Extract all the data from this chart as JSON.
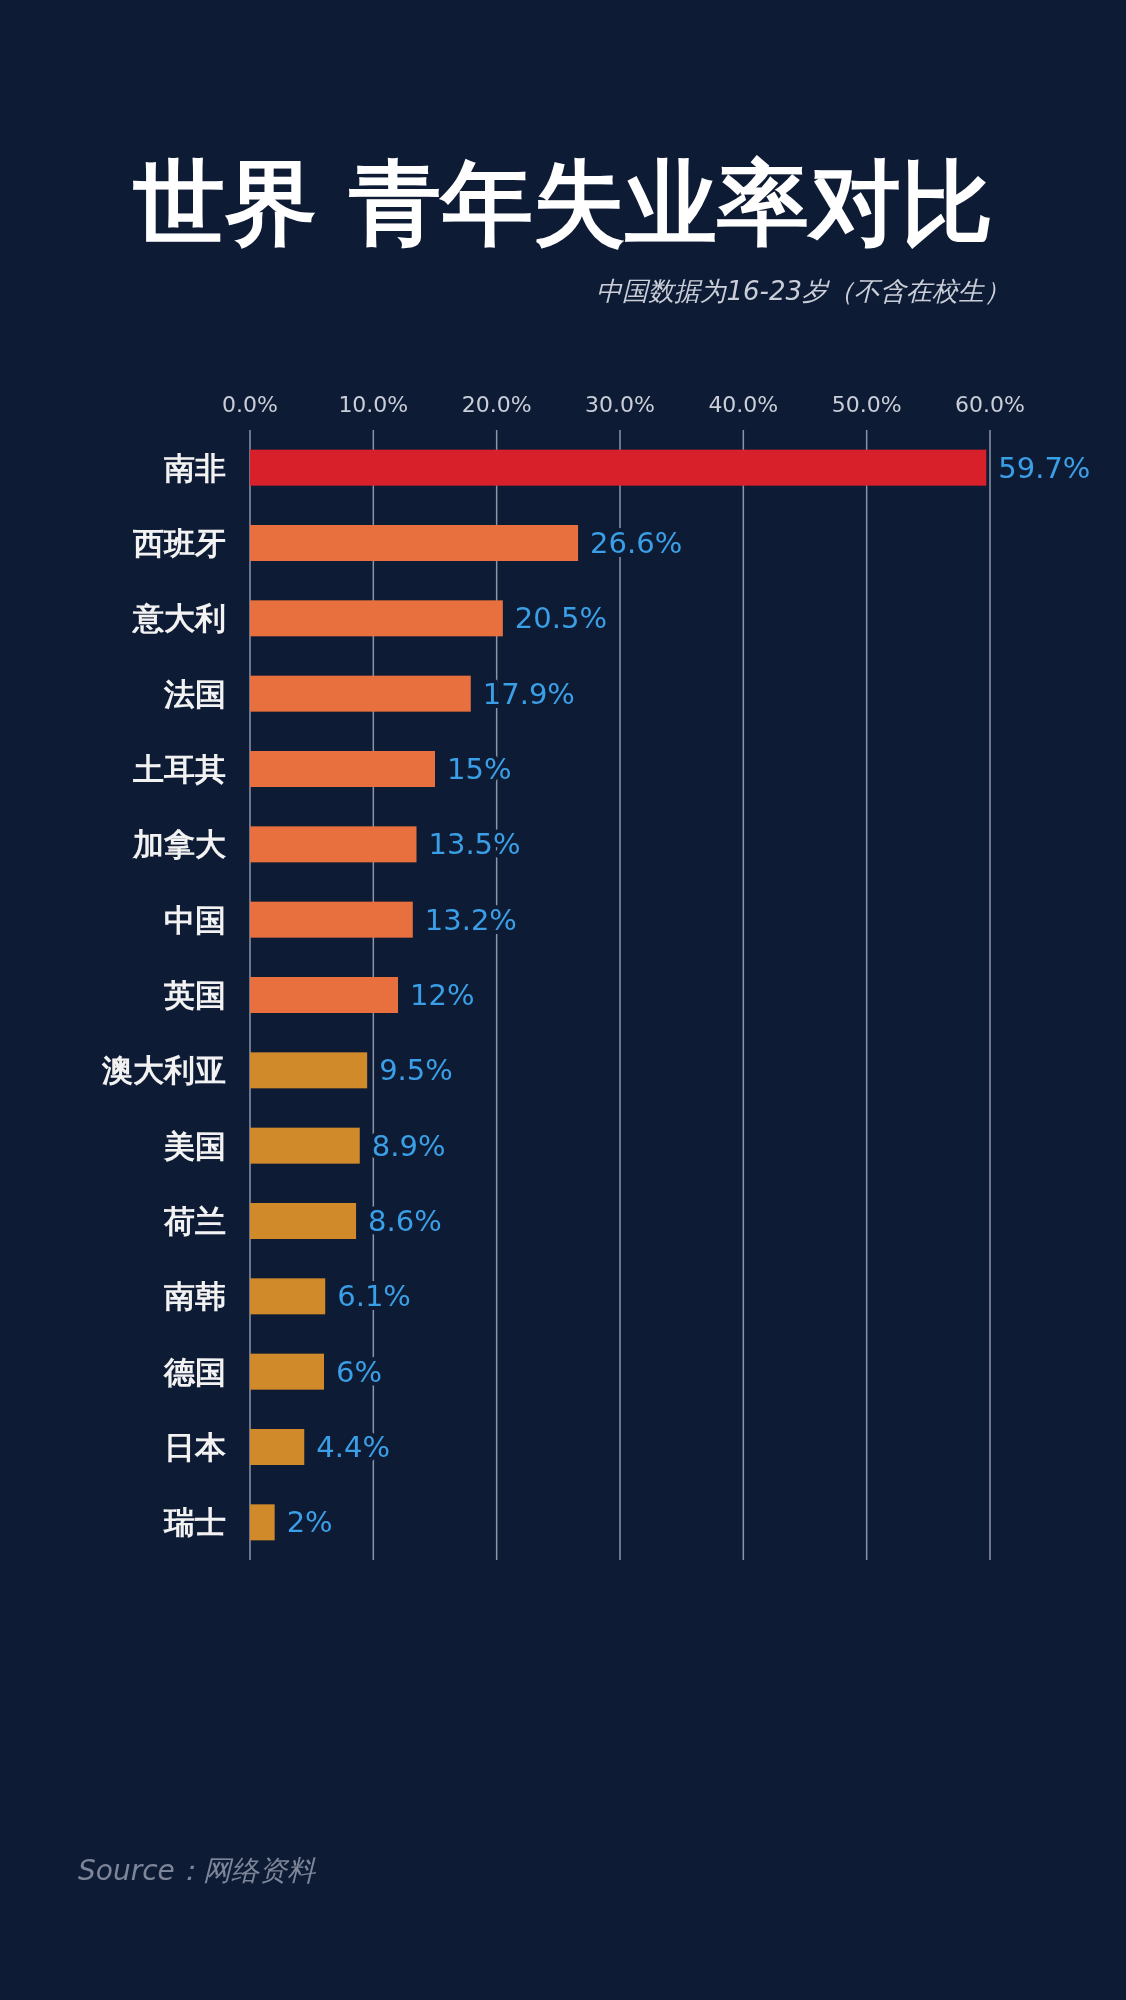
{
  "chart_data": {
    "type": "bar",
    "orientation": "horizontal",
    "title": "世界 青年失业率对比",
    "subtitle": "中国数据为16-23岁（不含在校生）",
    "categories": [
      "南非",
      "西班牙",
      "意大利",
      "法国",
      "土耳其",
      "加拿大",
      "中国",
      "英国",
      "澳大利亚",
      "美国",
      "荷兰",
      "南韩",
      "德国",
      "日本",
      "瑞士"
    ],
    "values": [
      59.7,
      26.6,
      20.5,
      17.9,
      15,
      13.5,
      13.2,
      12,
      9.5,
      8.9,
      8.6,
      6.1,
      6,
      4.4,
      2
    ],
    "colors": [
      "#d8202a",
      "#e8703e",
      "#e8703e",
      "#e8703e",
      "#e8703e",
      "#e8703e",
      "#e8703e",
      "#e8703e",
      "#d08a2a",
      "#d08a2a",
      "#d08a2a",
      "#d08a2a",
      "#d08a2a",
      "#d08a2a",
      "#d08a2a"
    ],
    "value_labels": [
      "59.7%",
      "26.6%",
      "20.5%",
      "17.9%",
      "15%",
      "13.5%",
      "13.2%",
      "12%",
      "9.5%",
      "8.9%",
      "8.6%",
      "6.1%",
      "6%",
      "4.4%",
      "2%"
    ],
    "xlim": [
      0,
      60
    ],
    "xticks": [
      {
        "value": 0,
        "label": "0.0%"
      },
      {
        "value": 10,
        "label": "10.0%"
      },
      {
        "value": 20,
        "label": "20.0%"
      },
      {
        "value": 30,
        "label": "30.0%"
      },
      {
        "value": 40,
        "label": "40.0%"
      },
      {
        "value": 50,
        "label": "50.0%"
      },
      {
        "value": 60,
        "label": "60.0%"
      }
    ],
    "grid": "x",
    "annotations": [
      "Source：网络资料"
    ]
  }
}
